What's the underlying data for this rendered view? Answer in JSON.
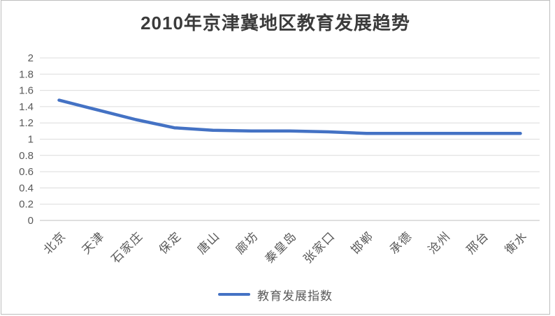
{
  "page": {
    "background": "#FFFFFF",
    "border_color": "#BDBDBD"
  },
  "chart_data": {
    "type": "line",
    "title": "2010年京津冀地区教育发展趋势",
    "categories": [
      "北京",
      "天津",
      "石家庄",
      "保定",
      "唐山",
      "廊坊",
      "秦皇岛",
      "张家口",
      "邯郸",
      "承德",
      "沧州",
      "邢台",
      "衡水"
    ],
    "series": [
      {
        "name": "教育发展指数",
        "color": "#4472C4",
        "values": [
          1.48,
          1.36,
          1.24,
          1.14,
          1.11,
          1.1,
          1.1,
          1.09,
          1.07,
          1.07,
          1.07,
          1.07,
          1.07
        ]
      }
    ],
    "ylim": [
      0,
      2
    ],
    "y_ticks": [
      {
        "value": 0,
        "label": "0"
      },
      {
        "value": 0.2,
        "label": "0.2"
      },
      {
        "value": 0.4,
        "label": "0.4"
      },
      {
        "value": 0.6,
        "label": "0.6"
      },
      {
        "value": 0.8,
        "label": "0.8"
      },
      {
        "value": 1,
        "label": "1"
      },
      {
        "value": 1.2,
        "label": "1.2"
      },
      {
        "value": 1.4,
        "label": "1.4"
      },
      {
        "value": 1.6,
        "label": "1.6"
      },
      {
        "value": 1.8,
        "label": "1.8"
      },
      {
        "value": 2,
        "label": "2"
      }
    ],
    "grid": true,
    "legend_position": "bottom",
    "colors": {
      "gridline": "#DCDCDC",
      "axis_line": "#BFBFBF",
      "axis_label": "#595959",
      "title": "#3B3B3B",
      "legend_label": "#595959"
    }
  }
}
